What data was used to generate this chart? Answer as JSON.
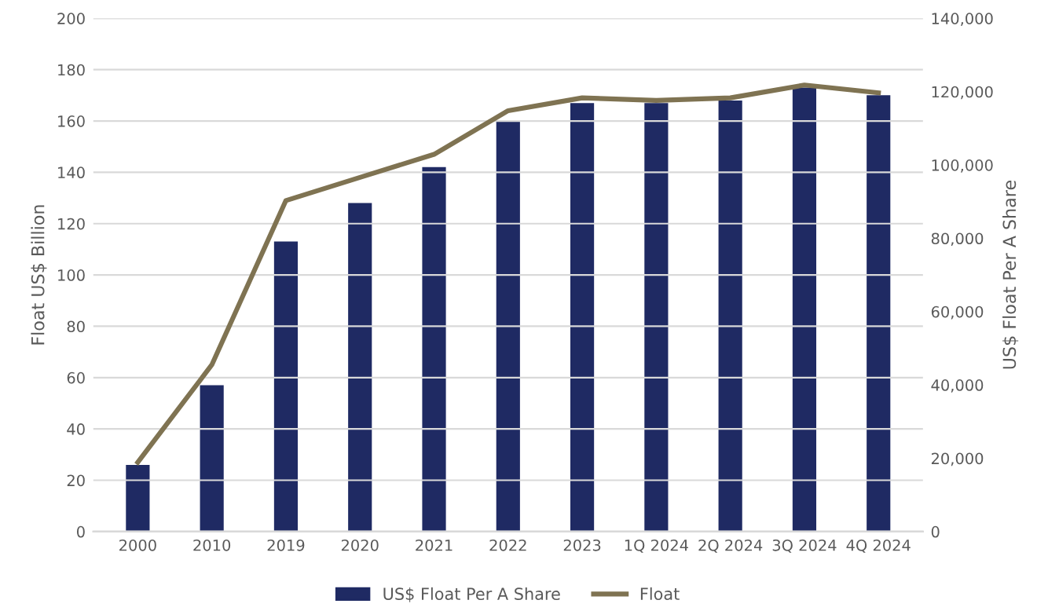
{
  "chart_data": {
    "type": "bar",
    "categories": [
      "2000",
      "2010",
      "2019",
      "2020",
      "2021",
      "2022",
      "2023",
      "1Q 2024",
      "2Q 2024",
      "3Q 2024",
      "4Q 2024"
    ],
    "series": [
      {
        "name": "US$ Float Per A Share",
        "axis": "y2",
        "color": "#1f2a63",
        "values": [
          18200,
          39900,
          79100,
          89600,
          99400,
          112000,
          116900,
          116900,
          117600,
          121100,
          119000
        ]
      },
      {
        "name": "Float",
        "type": "line",
        "axis": "y",
        "color": "#7f7352",
        "values": [
          27,
          65,
          129,
          138,
          147,
          164,
          169,
          168,
          169,
          174,
          171
        ]
      }
    ],
    "ylabel": "Float US$ Billion",
    "y2label": "US$ Float Per A Share",
    "ylim": [
      0,
      200
    ],
    "yticks": [
      0,
      20,
      40,
      60,
      80,
      100,
      120,
      140,
      160,
      180,
      200
    ],
    "y2lim": [
      0,
      140000
    ],
    "y2ticks": [
      {
        "value": 0,
        "label": "0"
      },
      {
        "value": 20000,
        "label": "20,000"
      },
      {
        "value": 40000,
        "label": "40,000"
      },
      {
        "value": 60000,
        "label": "60,000"
      },
      {
        "value": 80000,
        "label": "80,000"
      },
      {
        "value": 100000,
        "label": "100,000"
      },
      {
        "value": 120000,
        "label": "120,000"
      },
      {
        "value": 140000,
        "label": "140,000"
      }
    ],
    "grid": "y",
    "legend": "bottom",
    "marker": "none",
    "line_style": "solid"
  }
}
